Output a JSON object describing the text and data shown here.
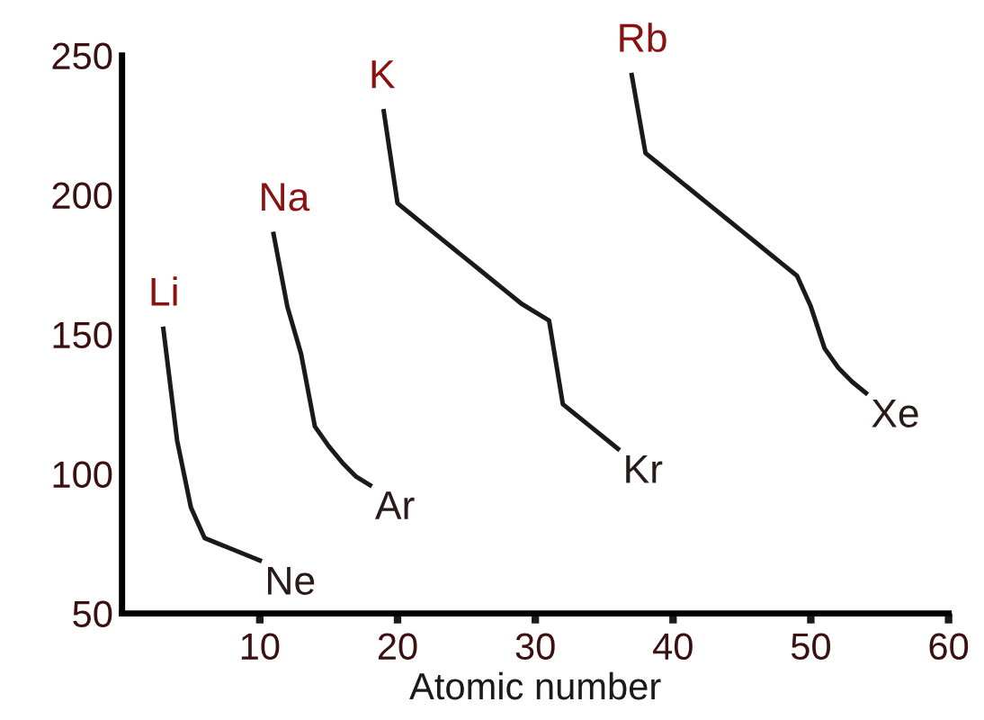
{
  "chart_data": {
    "type": "line",
    "xlabel": "Atomic number",
    "xlim": [
      0,
      60
    ],
    "xticks": [
      10,
      20,
      30,
      40,
      50,
      60
    ],
    "ylim": [
      50,
      250
    ],
    "yticks": [
      50,
      100,
      150,
      200,
      250
    ],
    "grid": false,
    "legend": false,
    "marker": "none",
    "line_style": "solid",
    "series": [
      {
        "color": "#1a1a1a",
        "x": [
          3,
          4,
          5,
          6,
          7,
          8,
          9,
          10
        ],
        "values": [
          152,
          112,
          88,
          77,
          75,
          73,
          71,
          69
        ]
      },
      {
        "color": "#1a1a1a",
        "x": [
          11,
          12,
          13,
          14,
          15,
          16,
          17,
          18
        ],
        "values": [
          186,
          160,
          143,
          117,
          110,
          104,
          99,
          96
        ]
      },
      {
        "color": "#1a1a1a",
        "x": [
          19,
          20,
          21,
          22,
          23,
          24,
          25,
          26,
          27,
          28,
          29,
          30,
          31,
          32,
          33,
          34,
          35,
          36
        ],
        "values": [
          230,
          197,
          193,
          189,
          185,
          181,
          177,
          173,
          169,
          165,
          161,
          158,
          155,
          125,
          121,
          117,
          113,
          109
        ]
      },
      {
        "color": "#1a1a1a",
        "x": [
          37,
          38,
          39,
          40,
          41,
          42,
          43,
          44,
          45,
          46,
          47,
          48,
          49,
          50,
          51,
          52,
          53,
          54
        ],
        "values": [
          243,
          215,
          211,
          207,
          203,
          199,
          195,
          191,
          187,
          183,
          179,
          175,
          171,
          160,
          145,
          138,
          133,
          129
        ]
      }
    ],
    "annotations": [
      {
        "text": "Li",
        "x": 3,
        "y": 152
      },
      {
        "text": "Ne",
        "x": 10,
        "y": 69
      },
      {
        "text": "Na",
        "x": 11,
        "y": 186
      },
      {
        "text": "Ar",
        "x": 18,
        "y": 96
      },
      {
        "text": "K",
        "x": 19,
        "y": 230
      },
      {
        "text": "Kr",
        "x": 36,
        "y": 109
      },
      {
        "text": "Rb",
        "x": 37,
        "y": 243
      },
      {
        "text": "Xe",
        "x": 54,
        "y": 129
      }
    ]
  }
}
